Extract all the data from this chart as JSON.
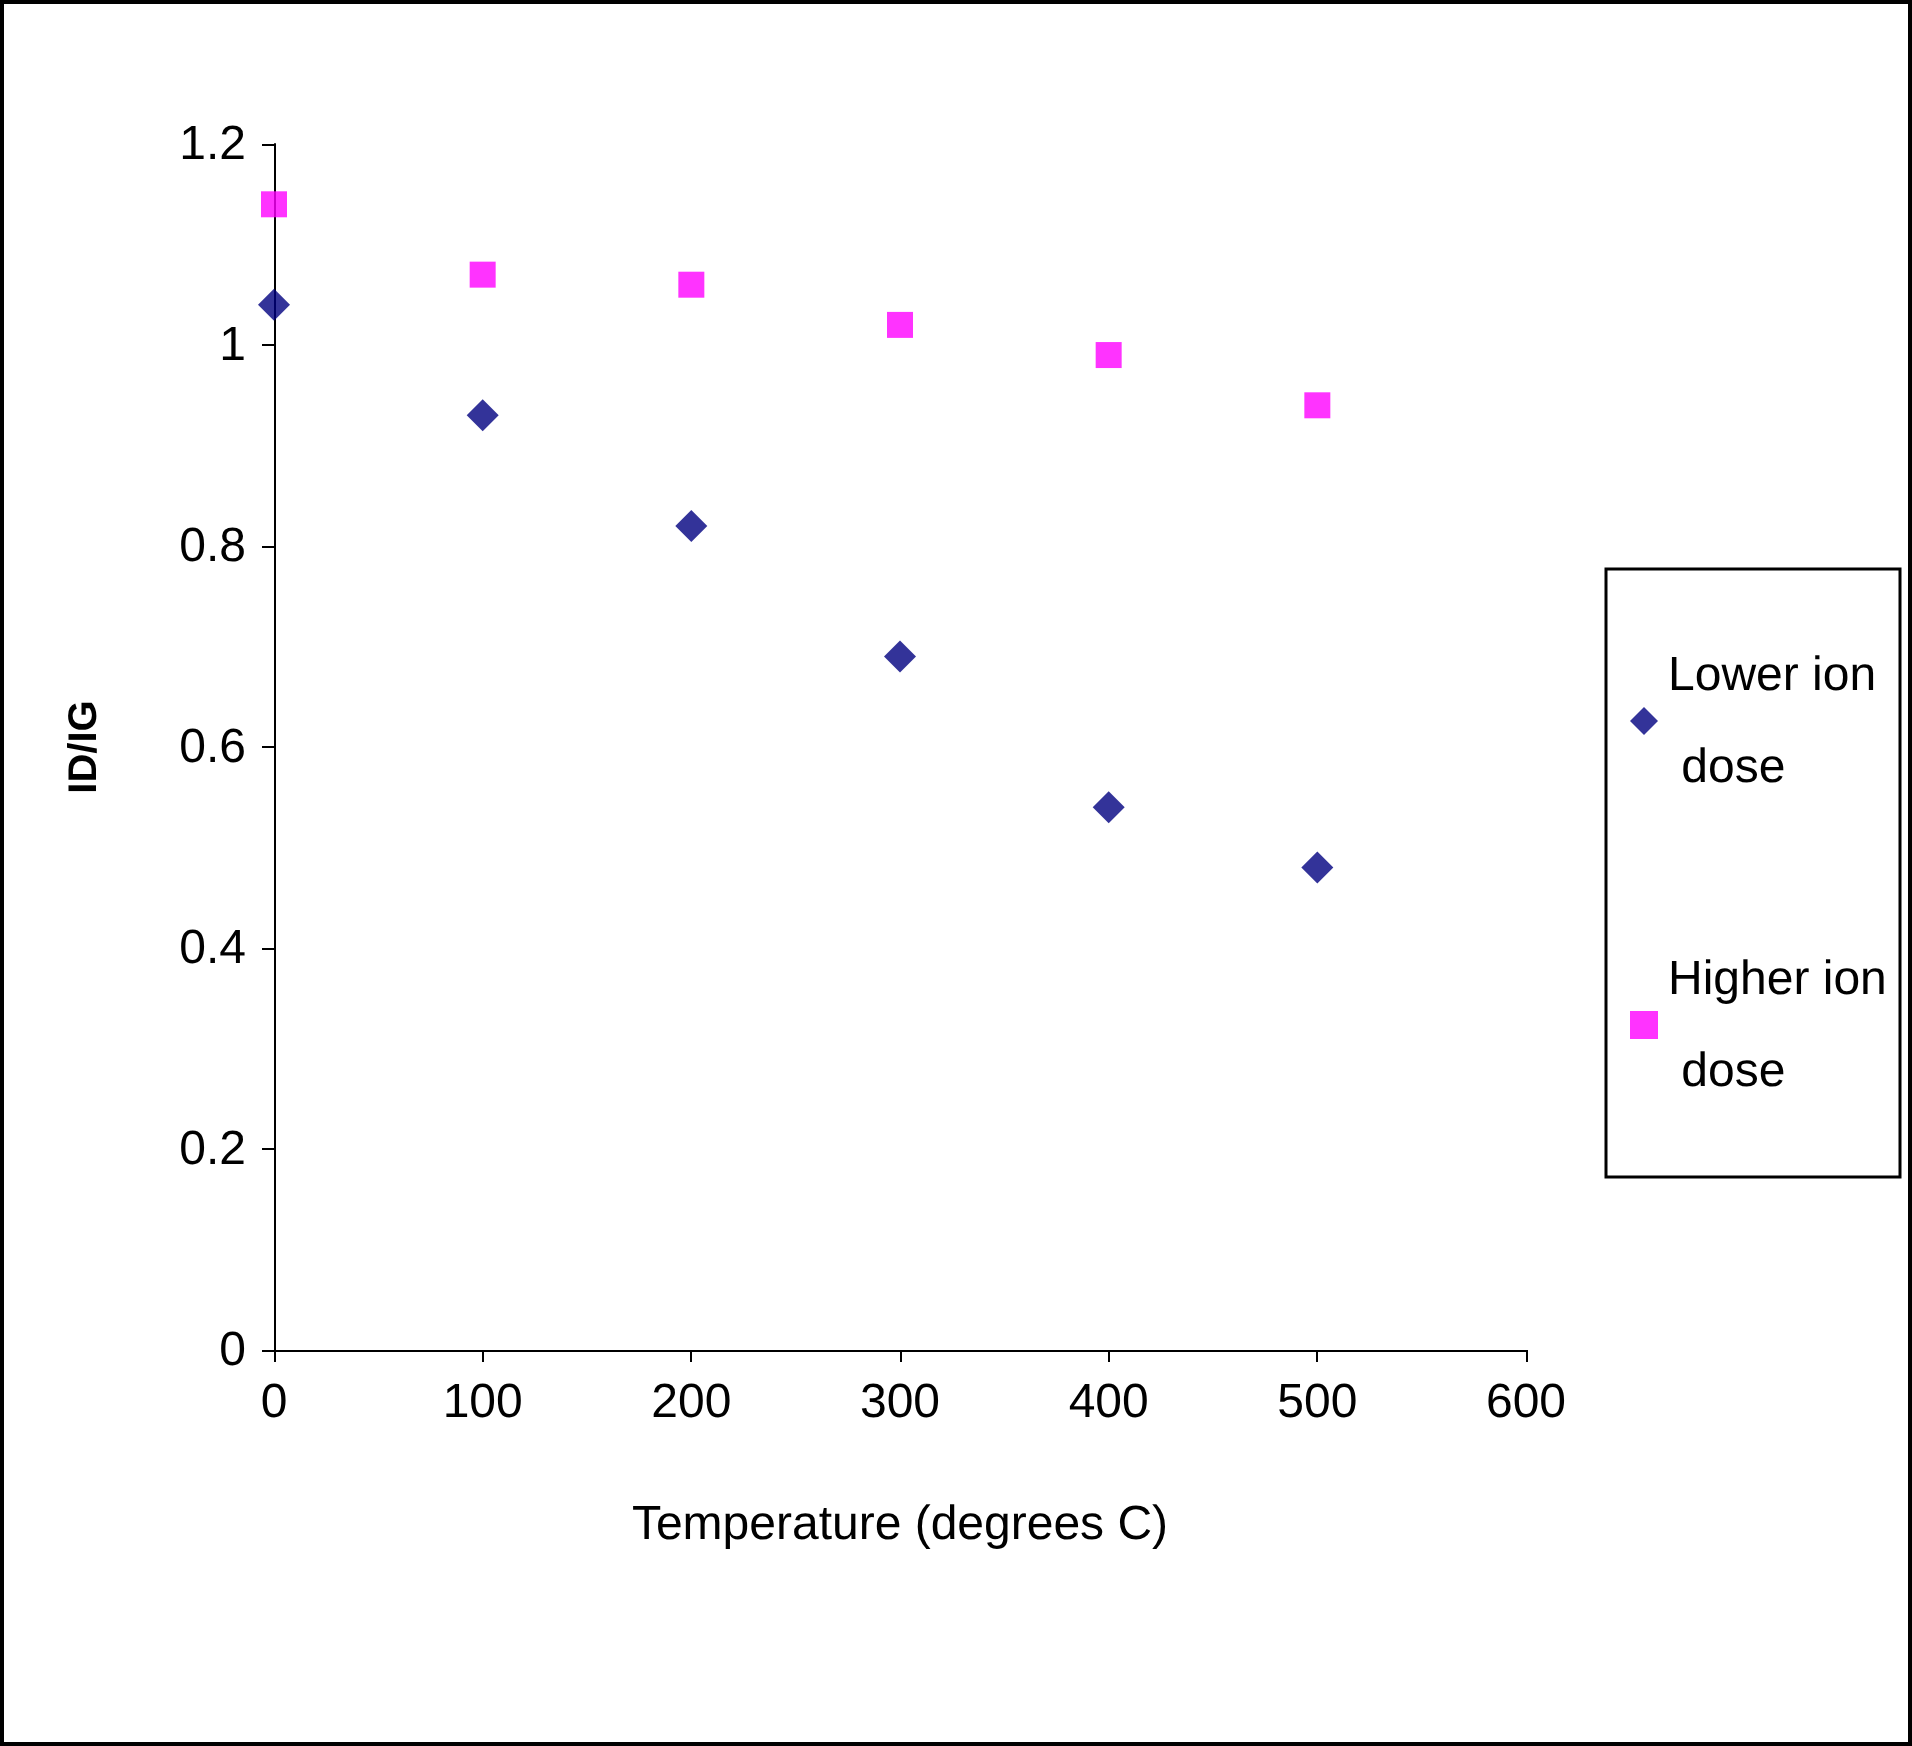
{
  "chart_data": {
    "type": "scatter",
    "xlabel": "Temperature (degrees C)",
    "ylabel": "ID/IG",
    "x": [
      0,
      100,
      200,
      300,
      400,
      500
    ],
    "series": [
      {
        "name": "Lower ion dose",
        "color": "#000080",
        "marker": "diamond",
        "values": [
          1.04,
          0.93,
          0.82,
          0.69,
          0.54,
          0.48
        ]
      },
      {
        "name": "Higher ion dose",
        "color": "#ff00ff",
        "marker": "square",
        "values": [
          1.14,
          1.07,
          1.06,
          1.02,
          0.99,
          0.94
        ]
      }
    ],
    "xlim": [
      0,
      600
    ],
    "xticks": [
      0,
      100,
      200,
      300,
      400,
      500,
      600
    ],
    "ylim": [
      0,
      1.2
    ],
    "yticks": [
      0,
      0.2,
      0.4,
      0.6,
      0.8,
      1,
      1.2
    ],
    "grid": false,
    "legend": "right"
  }
}
